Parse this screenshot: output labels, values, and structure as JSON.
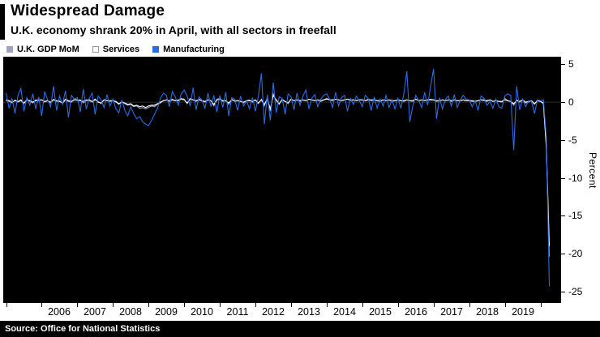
{
  "header": {
    "title": "Widespread Damage",
    "subtitle": "U.K. economy shrank 20% in April, with all sectors in freefall"
  },
  "source": {
    "text": "Source: Office for National Statistics"
  },
  "colors": {
    "page_bg": "#ffffff",
    "plot_bg": "#000000",
    "text": "#000000",
    "source_bar_bg": "#000000",
    "source_bar_text": "#ffffff"
  },
  "chart_data": {
    "type": "line",
    "title": "Widespread Damage",
    "subtitle": "U.K. economy shrank 20% in April, with all sectors in freefall",
    "x_start_year": 2005,
    "x_step": "1 month",
    "x_axis": {
      "tick_years": [
        2005,
        2006,
        2007,
        2008,
        2009,
        2010,
        2011,
        2012,
        2013,
        2014,
        2015,
        2016,
        2017,
        2018,
        2019,
        2020
      ],
      "labels": [
        "2006",
        "2007",
        "2008",
        "2009",
        "2010",
        "2011",
        "2012",
        "2013",
        "2014",
        "2015",
        "2016",
        "2017",
        "2018",
        "2019"
      ],
      "xlim": [
        2004.92,
        2020.58
      ]
    },
    "y_axis": {
      "label": "Percent",
      "ticks": [
        5,
        0,
        -5,
        -10,
        -15,
        -20,
        -25
      ],
      "max": 6,
      "min": -26.5,
      "grid": false
    },
    "legend_position": "top-left",
    "series": [
      {
        "name": "U.K. GDP MoM",
        "color": "#9fa3bd",
        "values": [
          0.2,
          0.1,
          -0.1,
          0.3,
          0.0,
          0.2,
          -0.2,
          0.4,
          0.1,
          -0.1,
          0.3,
          0.2,
          0.3,
          0.0,
          0.2,
          -0.1,
          0.4,
          0.1,
          0.2,
          -0.2,
          0.3,
          0.1,
          0.0,
          0.4,
          0.2,
          0.3,
          -0.1,
          0.2,
          0.4,
          0.0,
          0.3,
          0.1,
          -0.2,
          0.3,
          0.2,
          0.1,
          0.2,
          0.0,
          -0.3,
          0.1,
          -0.2,
          -0.4,
          -0.3,
          -0.6,
          -0.5,
          -0.8,
          -0.7,
          -0.9,
          -0.7,
          -0.5,
          -0.6,
          -0.3,
          -0.1,
          0.2,
          0.3,
          0.1,
          0.4,
          0.2,
          0.3,
          0.5,
          0.4,
          -0.2,
          0.5,
          0.3,
          0.1,
          0.4,
          0.2,
          0.0,
          0.3,
          0.2,
          -0.5,
          0.4,
          0.5,
          0.1,
          0.2,
          -0.3,
          0.4,
          0.1,
          0.2,
          0.1,
          -0.1,
          0.2,
          0.3,
          0.0,
          0.3,
          -0.2,
          0.4,
          -0.5,
          0.6,
          -1.2,
          1.1,
          0.2,
          -0.3,
          0.4,
          0.1,
          -0.2,
          0.4,
          0.2,
          0.3,
          0.1,
          0.3,
          0.2,
          0.4,
          0.3,
          0.2,
          0.3,
          0.1,
          0.3,
          0.5,
          0.3,
          0.2,
          0.4,
          0.3,
          0.2,
          0.3,
          0.4,
          0.2,
          0.3,
          0.2,
          0.3,
          0.3,
          0.2,
          0.4,
          0.2,
          0.3,
          0.2,
          0.1,
          0.3,
          0.2,
          0.3,
          0.1,
          0.2,
          0.3,
          0.2,
          0.1,
          0.3,
          0.2,
          0.1,
          0.4,
          0.2,
          0.3,
          0.2,
          0.3,
          0.4,
          0.3,
          0.1,
          0.2,
          0.3,
          0.2,
          0.3,
          0.1,
          0.3,
          0.2,
          0.2,
          0.3,
          0.2,
          0.2,
          0.1,
          0.1,
          0.2,
          0.3,
          0.2,
          0.1,
          0.3,
          0.1,
          0.2,
          0.1,
          0.0,
          0.5,
          0.2,
          0.1,
          -0.4,
          0.3,
          0.0,
          0.3,
          -0.1,
          0.0,
          0.2,
          -0.3,
          0.3,
          0.1,
          -0.2,
          -5.8,
          -20.4
        ]
      },
      {
        "name": "Services",
        "color": "#ffffff",
        "values": [
          0.3,
          0.2,
          0.0,
          0.2,
          0.1,
          0.3,
          -0.1,
          0.3,
          0.2,
          0.0,
          0.2,
          0.3,
          0.3,
          0.1,
          0.2,
          0.0,
          0.3,
          0.2,
          0.1,
          -0.1,
          0.4,
          0.2,
          0.1,
          0.3,
          0.3,
          0.2,
          0.1,
          0.3,
          0.2,
          0.1,
          0.4,
          0.0,
          -0.1,
          0.3,
          0.2,
          0.2,
          0.2,
          0.1,
          -0.2,
          0.0,
          -0.1,
          -0.3,
          -0.2,
          -0.5,
          -0.4,
          -0.6,
          -0.5,
          -0.7,
          -0.5,
          -0.4,
          -0.4,
          -0.2,
          0.0,
          0.2,
          0.3,
          0.2,
          0.3,
          0.2,
          0.2,
          0.4,
          0.3,
          -0.1,
          0.4,
          0.3,
          0.2,
          0.3,
          0.2,
          0.1,
          0.3,
          0.2,
          -0.3,
          0.3,
          0.4,
          0.2,
          0.2,
          -0.1,
          0.3,
          0.2,
          0.2,
          0.1,
          0.0,
          0.2,
          0.2,
          0.1,
          0.3,
          -0.1,
          0.3,
          -0.3,
          0.4,
          -0.9,
          0.9,
          0.3,
          -0.2,
          0.3,
          0.1,
          -0.1,
          0.4,
          0.2,
          0.3,
          0.2,
          0.3,
          0.2,
          0.4,
          0.3,
          0.2,
          0.3,
          0.2,
          0.3,
          0.4,
          0.3,
          0.3,
          0.4,
          0.3,
          0.2,
          0.3,
          0.4,
          0.3,
          0.3,
          0.2,
          0.3,
          0.3,
          0.2,
          0.3,
          0.3,
          0.3,
          0.2,
          0.2,
          0.3,
          0.2,
          0.3,
          0.2,
          0.2,
          0.3,
          0.2,
          0.2,
          0.3,
          0.2,
          0.2,
          0.4,
          0.2,
          0.3,
          0.2,
          0.3,
          0.3,
          0.3,
          0.2,
          0.2,
          0.3,
          0.2,
          0.3,
          0.2,
          0.3,
          0.2,
          0.2,
          0.3,
          0.2,
          0.2,
          0.2,
          0.1,
          0.2,
          0.3,
          0.3,
          0.2,
          0.3,
          0.1,
          0.2,
          0.1,
          0.1,
          0.3,
          0.2,
          0.1,
          -0.2,
          0.2,
          0.1,
          0.3,
          0.0,
          0.1,
          0.2,
          -0.2,
          0.2,
          0.1,
          -0.1,
          -5.9,
          -19.0
        ]
      },
      {
        "name": "Manufacturing",
        "color": "#2d6bdf",
        "values": [
          1.2,
          -0.8,
          0.5,
          -1.5,
          0.9,
          1.8,
          -1.2,
          0.6,
          -0.4,
          1.1,
          -0.9,
          0.7,
          -1.8,
          1.4,
          0.3,
          -0.6,
          2.1,
          -1.1,
          0.8,
          -0.3,
          1.5,
          -2.0,
          0.9,
          0.4,
          0.6,
          -1.3,
          1.7,
          -0.9,
          0.5,
          1.2,
          -1.6,
          0.8,
          0.3,
          -0.7,
          1.0,
          -0.5,
          0.4,
          -0.9,
          -1.4,
          0.3,
          -1.1,
          -1.8,
          -0.6,
          -1.5,
          -2.2,
          -1.9,
          -2.6,
          -2.9,
          -3.1,
          -2.4,
          -1.6,
          -0.8,
          0.5,
          1.2,
          0.9,
          -0.6,
          1.4,
          0.7,
          -0.4,
          1.1,
          1.6,
          0.8,
          -0.5,
          1.9,
          -1.0,
          0.7,
          0.3,
          -0.8,
          1.2,
          -0.6,
          0.9,
          -1.3,
          0.9,
          -0.7,
          1.3,
          -1.8,
          0.6,
          0.4,
          -1.1,
          0.8,
          -0.5,
          0.2,
          -0.9,
          0.6,
          -1.2,
          0.8,
          3.8,
          -2.9,
          1.0,
          -2.4,
          2.6,
          -1.4,
          0.7,
          0.5,
          -1.6,
          1.1,
          0.7,
          -1.0,
          1.2,
          -0.4,
          0.8,
          1.6,
          -0.9,
          0.5,
          1.0,
          -0.6,
          0.4,
          0.9,
          1.1,
          0.4,
          -0.7,
          1.3,
          -0.5,
          0.6,
          0.9,
          -1.2,
          0.5,
          -0.3,
          0.8,
          0.2,
          -0.6,
          0.9,
          0.5,
          -1.1,
          0.7,
          -0.8,
          0.4,
          -0.5,
          0.9,
          -0.7,
          0.3,
          -0.9,
          0.5,
          -0.8,
          1.1,
          4.1,
          -2.6,
          -0.5,
          0.9,
          0.2,
          -0.7,
          1.3,
          -0.4,
          2.1,
          4.4,
          -2.2,
          0.6,
          -0.9,
          0.4,
          0.8,
          -0.5,
          1.0,
          -0.7,
          0.3,
          0.9,
          0.4,
          0.3,
          -0.6,
          0.2,
          -1.1,
          0.8,
          0.5,
          -0.4,
          0.1,
          -0.8,
          0.4,
          -0.6,
          -0.8,
          0.8,
          1.1,
          0.9,
          -6.3,
          2.1,
          -1.0,
          0.4,
          -0.6,
          0.2,
          0.1,
          -1.5,
          0.3,
          0.2,
          0.3,
          -4.6,
          -24.3
        ]
      }
    ]
  }
}
